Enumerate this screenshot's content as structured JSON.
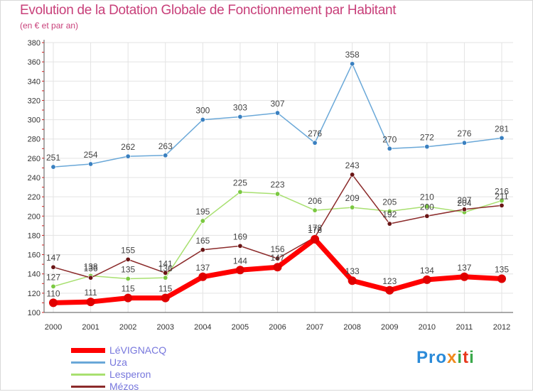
{
  "header": {
    "title": "Evolution de la Dotation Globale de Fonctionnement par Habitant",
    "subtitle": "(en € et par an)"
  },
  "logo": {
    "text": "Proxiti",
    "letters": [
      "P",
      "r",
      "o",
      "x",
      "i",
      "t",
      "i"
    ],
    "colors": [
      "#2a8ad8",
      "#2a8ad8",
      "#2a8ad8",
      "#f08a1c",
      "#3aa84a",
      "#e8381c",
      "#3aa84a"
    ]
  },
  "chart_data": {
    "type": "line",
    "title": "Evolution de la Dotation Globale de Fonctionnement par Habitant",
    "subtitle": "(en € et par an)",
    "xlabel": "",
    "ylabel": "",
    "ylim": [
      100,
      380
    ],
    "yticks": [
      100,
      120,
      140,
      160,
      180,
      200,
      220,
      240,
      260,
      280,
      300,
      320,
      340,
      360,
      380
    ],
    "grid": true,
    "categories": [
      "2000",
      "2001",
      "2002",
      "2003",
      "2004",
      "2005",
      "2006",
      "2007",
      "2008",
      "2009",
      "2010",
      "2011",
      "2012"
    ],
    "series": [
      {
        "name": "LéVIGNACQ",
        "color": "#ff0000",
        "dot_color": "#e00000",
        "width": 7,
        "values": [
          110,
          111,
          115,
          115,
          137,
          144,
          147,
          176,
          133,
          123,
          134,
          137,
          135
        ]
      },
      {
        "name": "Uza",
        "color": "#6aa8d8",
        "dot_color": "#3a80c0",
        "width": 1.5,
        "values": [
          251,
          254,
          262,
          263,
          300,
          303,
          307,
          276,
          358,
          270,
          272,
          276,
          281
        ]
      },
      {
        "name": "Lesperon",
        "color": "#a8e070",
        "dot_color": "#7ac840",
        "width": 1.5,
        "values": [
          127,
          138,
          135,
          136,
          195,
          225,
          223,
          206,
          209,
          205,
          210,
          204,
          216
        ]
      },
      {
        "name": "Mézos",
        "color": "#8b2a2a",
        "dot_color": "#6a1515",
        "width": 1.5,
        "values": [
          147,
          136,
          155,
          141,
          165,
          169,
          156,
          178,
          243,
          192,
          200,
          207,
          211
        ]
      }
    ],
    "data_labels": [
      {
        "series": "LéVIGNACQ",
        "labels": [
          "110",
          "111",
          "115",
          "115",
          "137",
          "144",
          "147",
          "176",
          "133",
          "123",
          "134",
          "137",
          "135"
        ]
      },
      {
        "series": "Uza",
        "labels": [
          "251",
          "254",
          "262",
          "263",
          "300",
          "303",
          "307",
          "276",
          "358",
          "270",
          "272",
          "276",
          "281"
        ]
      },
      {
        "series": "Lesperon",
        "labels": [
          "127",
          "138",
          "135",
          "136",
          "195",
          "225",
          "223",
          "206",
          "209",
          "205",
          "210",
          "204",
          "216"
        ]
      },
      {
        "series": "Mézos",
        "labels": [
          "147",
          "136",
          "155",
          "141",
          "165",
          "169",
          "156",
          "178",
          "243",
          "192",
          "200",
          "207",
          "211"
        ]
      }
    ]
  }
}
